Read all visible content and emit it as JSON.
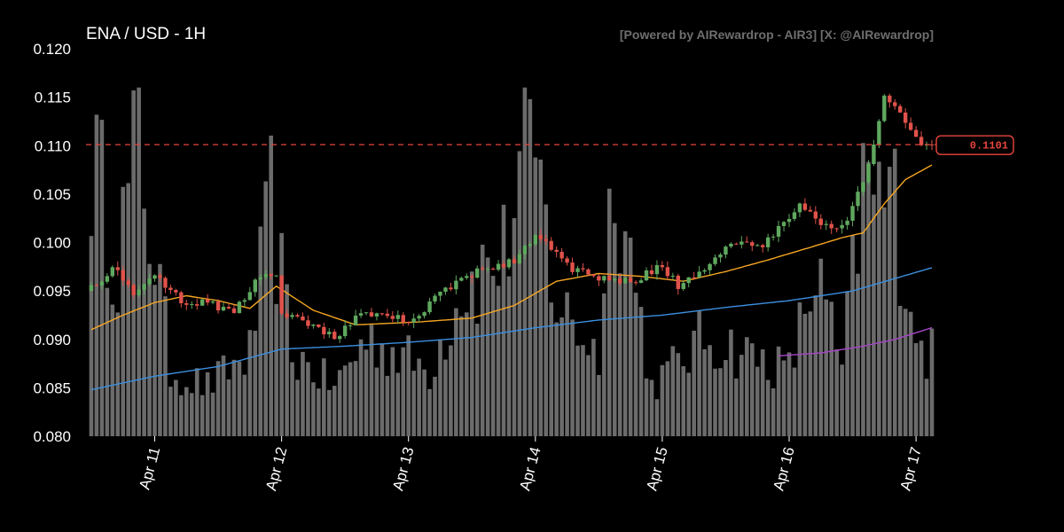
{
  "header": {
    "title": "ENA / USD - 1H",
    "watermark": "[Powered by AIRewardrop - AIR3] [X: @AIRewardrop]"
  },
  "colors": {
    "background": "#000000",
    "up": "#5fa85f",
    "down": "#e0524a",
    "volume": "#6b6b6b",
    "ma_short": "#f5a623",
    "ma_mid": "#3b8fe0",
    "ma_long": "#a646c8",
    "price_line": "#e8453c"
  },
  "chart_data": {
    "type": "candlestick",
    "title": "ENA / USD - 1H",
    "xlabel": "",
    "ylabel": "",
    "ylim": [
      0.08,
      0.12
    ],
    "yticks": [
      "0.080",
      "0.085",
      "0.090",
      "0.095",
      "0.100",
      "0.105",
      "0.110",
      "0.115",
      "0.120"
    ],
    "xticks": [
      "Apr 11",
      "Apr 12",
      "Apr 13",
      "Apr 14",
      "Apr 15",
      "Apr 16",
      "Apr 17"
    ],
    "grid": false,
    "current_price": "0.1101",
    "price_keypoints": [
      {
        "time": "Apr 10 12:00",
        "close": 0.0955
      },
      {
        "time": "Apr 10 17:00",
        "close": 0.0975
      },
      {
        "time": "Apr 10 20:00",
        "close": 0.0945
      },
      {
        "time": "Apr 11 00:00",
        "close": 0.0965
      },
      {
        "time": "Apr 11 05:00",
        "close": 0.094
      },
      {
        "time": "Apr 11 10:00",
        "close": 0.0938
      },
      {
        "time": "Apr 11 15:00",
        "close": 0.0928
      },
      {
        "time": "Apr 11 20:00",
        "close": 0.0965
      },
      {
        "time": "Apr 11 23:00",
        "close": 0.097
      },
      {
        "time": "Apr 12 00:00",
        "close": 0.0925
      },
      {
        "time": "Apr 12 05:00",
        "close": 0.0918
      },
      {
        "time": "Apr 12 10:00",
        "close": 0.0903
      },
      {
        "time": "Apr 12 15:00",
        "close": 0.0925
      },
      {
        "time": "Apr 12 20:00",
        "close": 0.0922
      },
      {
        "time": "Apr 13 01:00",
        "close": 0.092
      },
      {
        "time": "Apr 13 06:00",
        "close": 0.095
      },
      {
        "time": "Apr 13 13:00",
        "close": 0.097
      },
      {
        "time": "Apr 13 20:00",
        "close": 0.098
      },
      {
        "time": "Apr 14 00:00",
        "close": 0.101
      },
      {
        "time": "Apr 14 06:00",
        "close": 0.0975
      },
      {
        "time": "Apr 14 12:00",
        "close": 0.0965
      },
      {
        "time": "Apr 14 18:00",
        "close": 0.096
      },
      {
        "time": "Apr 15 00:00",
        "close": 0.0975
      },
      {
        "time": "Apr 15 03:00",
        "close": 0.0955
      },
      {
        "time": "Apr 15 08:00",
        "close": 0.0975
      },
      {
        "time": "Apr 15 14:00",
        "close": 0.1
      },
      {
        "time": "Apr 15 19:00",
        "close": 0.0995
      },
      {
        "time": "Apr 16 02:00",
        "close": 0.104
      },
      {
        "time": "Apr 16 07:00",
        "close": 0.1018
      },
      {
        "time": "Apr 16 10:00",
        "close": 0.1015
      },
      {
        "time": "Apr 16 14:00",
        "close": 0.106
      },
      {
        "time": "Apr 16 18:00",
        "close": 0.115
      },
      {
        "time": "Apr 16 21:00",
        "close": 0.113
      },
      {
        "time": "Apr 17 01:00",
        "close": 0.1101
      }
    ],
    "volume_profile": [
      {
        "time": "Apr 10 12:00",
        "rel": 0.85
      },
      {
        "time": "Apr 10 17:00",
        "rel": 0.55
      },
      {
        "time": "Apr 10 21:00",
        "rel": 0.9
      },
      {
        "time": "Apr 11 03:00",
        "rel": 0.2
      },
      {
        "time": "Apr 11 10:00",
        "rel": 0.15
      },
      {
        "time": "Apr 11 18:00",
        "rel": 0.25
      },
      {
        "time": "Apr 11 22:00",
        "rel": 0.7
      },
      {
        "time": "Apr 12 02:00",
        "rel": 0.25
      },
      {
        "time": "Apr 12 10:00",
        "rel": 0.15
      },
      {
        "time": "Apr 12 16:00",
        "rel": 0.3
      },
      {
        "time": "Apr 13 04:00",
        "rel": 0.2
      },
      {
        "time": "Apr 13 10:00",
        "rel": 0.45
      },
      {
        "time": "Apr 13 18:00",
        "rel": 0.55
      },
      {
        "time": "Apr 13 23:00",
        "rel": 0.95
      },
      {
        "time": "Apr 14 04:00",
        "rel": 0.4
      },
      {
        "time": "Apr 14 12:00",
        "rel": 0.25
      },
      {
        "time": "Apr 14 15:00",
        "rel": 0.85
      },
      {
        "time": "Apr 14 22:00",
        "rel": 0.15
      },
      {
        "time": "Apr 15 08:00",
        "rel": 0.3
      },
      {
        "time": "Apr 15 16:00",
        "rel": 0.25
      },
      {
        "time": "Apr 16 00:00",
        "rel": 0.2
      },
      {
        "time": "Apr 16 05:00",
        "rel": 0.5
      },
      {
        "time": "Apr 16 10:00",
        "rel": 0.2
      },
      {
        "time": "Apr 16 14:00",
        "rel": 0.75
      },
      {
        "time": "Apr 16 20:00",
        "rel": 0.7
      },
      {
        "time": "Apr 17 01:00",
        "rel": 0.25
      }
    ],
    "series": [
      {
        "role": "ma_short",
        "points": [
          {
            "time": "Apr 10 12:00",
            "value": 0.091
          },
          {
            "time": "Apr 10 18:00",
            "value": 0.0925
          },
          {
            "time": "Apr 11 00:00",
            "value": 0.0938
          },
          {
            "time": "Apr 11 06:00",
            "value": 0.0945
          },
          {
            "time": "Apr 11 12:00",
            "value": 0.094
          },
          {
            "time": "Apr 11 18:00",
            "value": 0.0932
          },
          {
            "time": "Apr 11 23:00",
            "value": 0.0955
          },
          {
            "time": "Apr 12 06:00",
            "value": 0.093
          },
          {
            "time": "Apr 12 14:00",
            "value": 0.0915
          },
          {
            "time": "Apr 13 02:00",
            "value": 0.0918
          },
          {
            "time": "Apr 13 12:00",
            "value": 0.0922
          },
          {
            "time": "Apr 13 20:00",
            "value": 0.0935
          },
          {
            "time": "Apr 14 04:00",
            "value": 0.096
          },
          {
            "time": "Apr 14 12:00",
            "value": 0.0968
          },
          {
            "time": "Apr 14 20:00",
            "value": 0.0965
          },
          {
            "time": "Apr 15 04:00",
            "value": 0.096
          },
          {
            "time": "Apr 15 12:00",
            "value": 0.097
          },
          {
            "time": "Apr 15 20:00",
            "value": 0.0982
          },
          {
            "time": "Apr 16 04:00",
            "value": 0.0995
          },
          {
            "time": "Apr 16 10:00",
            "value": 0.1005
          },
          {
            "time": "Apr 16 14:00",
            "value": 0.101
          },
          {
            "time": "Apr 16 18:00",
            "value": 0.104
          },
          {
            "time": "Apr 16 22:00",
            "value": 0.1065
          },
          {
            "time": "Apr 17 03:00",
            "value": 0.108
          }
        ]
      },
      {
        "role": "ma_mid",
        "points": [
          {
            "time": "Apr 10 12:00",
            "value": 0.0848
          },
          {
            "time": "Apr 11 00:00",
            "value": 0.0862
          },
          {
            "time": "Apr 11 12:00",
            "value": 0.0872
          },
          {
            "time": "Apr 12 00:00",
            "value": 0.089
          },
          {
            "time": "Apr 12 12:00",
            "value": 0.0893
          },
          {
            "time": "Apr 13 00:00",
            "value": 0.0897
          },
          {
            "time": "Apr 13 12:00",
            "value": 0.0902
          },
          {
            "time": "Apr 14 00:00",
            "value": 0.0912
          },
          {
            "time": "Apr 14 12:00",
            "value": 0.092
          },
          {
            "time": "Apr 15 00:00",
            "value": 0.0925
          },
          {
            "time": "Apr 15 12:00",
            "value": 0.0933
          },
          {
            "time": "Apr 16 00:00",
            "value": 0.094
          },
          {
            "time": "Apr 16 12:00",
            "value": 0.095
          },
          {
            "time": "Apr 17 03:00",
            "value": 0.0974
          }
        ]
      },
      {
        "role": "ma_long",
        "points": [
          {
            "time": "Apr 15 22:00",
            "value": 0.0883
          },
          {
            "time": "Apr 16 06:00",
            "value": 0.0886
          },
          {
            "time": "Apr 16 14:00",
            "value": 0.0893
          },
          {
            "time": "Apr 16 20:00",
            "value": 0.09
          },
          {
            "time": "Apr 17 03:00",
            "value": 0.0912
          }
        ]
      }
    ]
  }
}
